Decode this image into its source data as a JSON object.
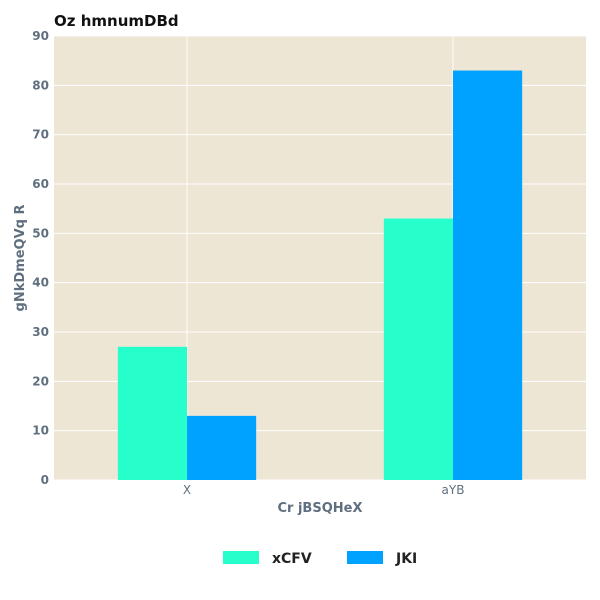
{
  "chart_data": {
    "type": "bar",
    "title": "Oz hmnumDBd",
    "xlabel": "Cr jBSQHeX",
    "ylabel": "gNkDmeQVq R",
    "categories": [
      "X",
      "aYB"
    ],
    "series": [
      {
        "name": "xCFV",
        "values": [
          27,
          53
        ],
        "color": "#26ffcc"
      },
      {
        "name": "JKI",
        "values": [
          13,
          83
        ],
        "color": "#00a2ff"
      }
    ],
    "ylim": [
      0,
      90
    ],
    "yticks": [
      0,
      10,
      20,
      30,
      40,
      50,
      60,
      70,
      80,
      90
    ],
    "grid": true,
    "legend_position": "bottom-center",
    "plot_background": "#ede6d4",
    "grid_color": "#ffffff"
  }
}
